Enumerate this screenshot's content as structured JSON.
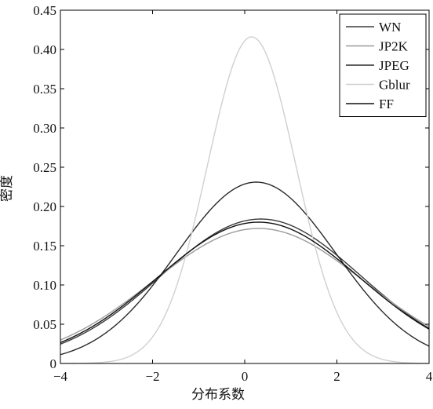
{
  "chart_data": {
    "type": "line",
    "title": "",
    "xlabel": "分布系数",
    "ylabel": "密度",
    "xlim": [
      -4,
      4
    ],
    "ylim": [
      0,
      0.45
    ],
    "xticks": [
      -4,
      -2,
      0,
      2,
      4
    ],
    "yticks": [
      0,
      0.05,
      0.1,
      0.15,
      0.2,
      0.25,
      0.3,
      0.35,
      0.4,
      0.45
    ],
    "xtick_labels": [
      "−4",
      "−2",
      "0",
      "2",
      "4"
    ],
    "ytick_labels": [
      "0",
      "0.05",
      "0.10",
      "0.15",
      "0.20",
      "0.25",
      "0.30",
      "0.35",
      "0.40",
      "0.45"
    ],
    "legend_position": "top-right",
    "grid": false,
    "series": [
      {
        "name": "WN",
        "color": "#3a3a3a",
        "mean": 0.35,
        "sd": 2.17,
        "peak": 0.184
      },
      {
        "name": "JP2K",
        "color": "#9a9a9a",
        "mean": 0.3,
        "sd": 2.3,
        "peak": 0.172
      },
      {
        "name": "JPEG",
        "color": "#2a2a2a",
        "mean": 0.25,
        "sd": 1.73,
        "peak": 0.231
      },
      {
        "name": "Gblur",
        "color": "#d0d0d0",
        "mean": 0.15,
        "sd": 0.96,
        "peak": 0.416
      },
      {
        "name": "FF",
        "color": "#111111",
        "mean": 0.3,
        "sd": 2.2,
        "peak": 0.18
      }
    ]
  }
}
